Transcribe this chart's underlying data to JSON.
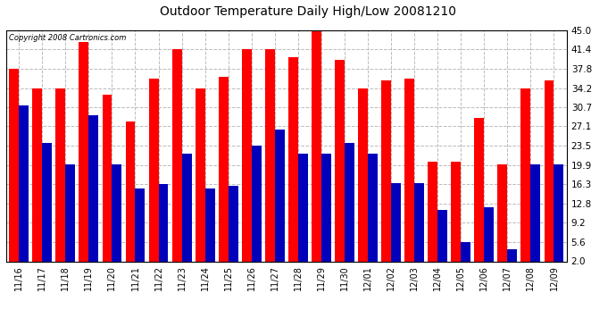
{
  "title": "Outdoor Temperature Daily High/Low 20081210",
  "copyright": "Copyright 2008 Cartronics.com",
  "dates": [
    "11/16",
    "11/17",
    "11/18",
    "11/19",
    "11/20",
    "11/21",
    "11/22",
    "11/23",
    "11/24",
    "11/25",
    "11/26",
    "11/27",
    "11/28",
    "11/29",
    "11/30",
    "12/01",
    "12/02",
    "12/03",
    "12/04",
    "12/05",
    "12/06",
    "12/07",
    "12/08",
    "12/09"
  ],
  "highs": [
    37.8,
    34.2,
    34.2,
    42.8,
    33.0,
    28.0,
    36.0,
    41.4,
    34.2,
    36.4,
    41.4,
    41.4,
    40.0,
    46.0,
    39.4,
    34.2,
    35.6,
    36.0,
    20.5,
    20.5,
    28.6,
    20.0,
    34.2,
    35.6
  ],
  "lows": [
    31.0,
    24.0,
    20.0,
    29.2,
    20.0,
    15.5,
    16.3,
    22.0,
    15.5,
    16.0,
    23.5,
    26.5,
    22.0,
    22.0,
    24.0,
    22.0,
    16.5,
    16.5,
    11.5,
    5.6,
    12.0,
    4.2,
    20.0,
    20.0
  ],
  "high_color": "#ff0000",
  "low_color": "#0000bb",
  "bg_color": "#ffffff",
  "yticks": [
    2.0,
    5.6,
    9.2,
    12.8,
    16.3,
    19.9,
    23.5,
    27.1,
    30.7,
    34.2,
    37.8,
    41.4,
    45.0
  ],
  "ymin": 2.0,
  "ymax": 45.0,
  "grid_color": "#bbbbbb",
  "bar_width": 0.42
}
